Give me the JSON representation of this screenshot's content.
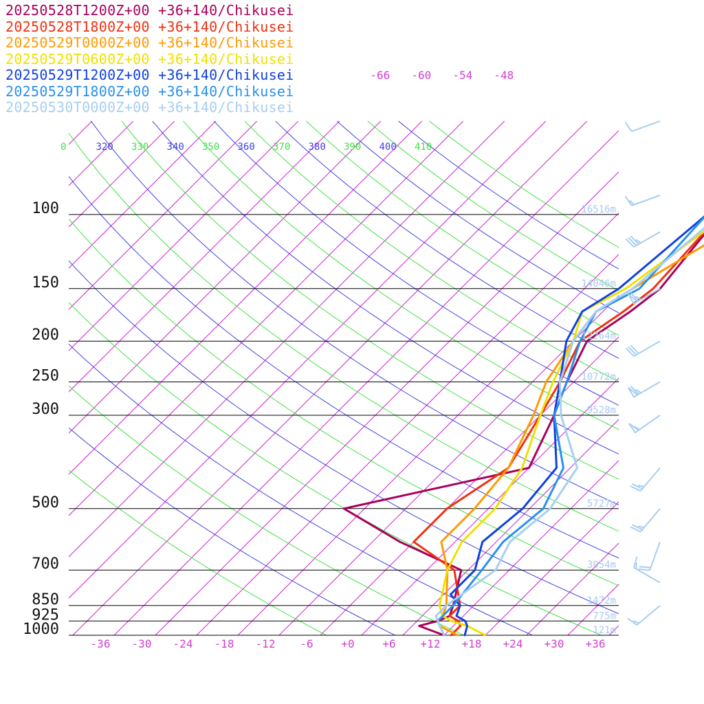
{
  "legend": [
    {
      "label": "20250528T1200Z+00 +36+140/Chikusei",
      "color": "#a8005c"
    },
    {
      "label": "20250528T1800Z+00 +36+140/Chikusei",
      "color": "#f03010"
    },
    {
      "label": "20250529T0000Z+00 +36+140/Chikusei",
      "color": "#ff9a00"
    },
    {
      "label": "20250529T0600Z+00 +36+140/Chikusei",
      "color": "#f0e000"
    },
    {
      "label": "20250529T1200Z+00 +36+140/Chikusei",
      "color": "#1040e0"
    },
    {
      "label": "20250529T1800Z+00 +36+140/Chikusei",
      "color": "#2890f0"
    },
    {
      "label": "20250530T0000Z+00 +36+140/Chikusei",
      "color": "#a8cef0"
    }
  ],
  "chart_data": {
    "type": "skew-t log-p",
    "pressure_levels": [
      {
        "p": 100,
        "label": "100",
        "height": "16516m"
      },
      {
        "p": 150,
        "label": "150",
        "height": "14046m"
      },
      {
        "p": 200,
        "label": "200",
        "height": "12264m"
      },
      {
        "p": 250,
        "label": "250",
        "height": "10772m"
      },
      {
        "p": 300,
        "label": "300",
        "height": "9528m"
      },
      {
        "p": 500,
        "label": "500",
        "height": "5727m"
      },
      {
        "p": 700,
        "label": "700",
        "height": "3054m"
      },
      {
        "p": 850,
        "label": "850",
        "height": "1472m"
      },
      {
        "p": 925,
        "label": "925",
        "height": "775m"
      },
      {
        "p": 1000,
        "label": "1000",
        "height": "121m"
      }
    ],
    "temperature_ticks": [
      "-36",
      "-30",
      "-24",
      "-18",
      "-12",
      "-6",
      "+0",
      "+6",
      "+12",
      "+18",
      "+24",
      "+30",
      "+36"
    ],
    "upper_temperature_ticks": [
      "-66",
      "-60",
      "-54",
      "-48"
    ],
    "theta_ticks": [
      {
        "label": "0",
        "color": "#40e040"
      },
      {
        "label": "320",
        "color": "#4040e0"
      },
      {
        "label": "330",
        "color": "#40e040"
      },
      {
        "label": "340",
        "color": "#4040e0"
      },
      {
        "label": "350",
        "color": "#40e040"
      },
      {
        "label": "360",
        "color": "#4040e0"
      },
      {
        "label": "370",
        "color": "#40e040"
      },
      {
        "label": "380",
        "color": "#4040e0"
      },
      {
        "label": "390",
        "color": "#40e040"
      },
      {
        "label": "400",
        "color": "#4040e0"
      },
      {
        "label": "410",
        "color": "#40e040"
      }
    ],
    "series": [
      {
        "name": "20250528T1200Z+00 +36+140/Chikusei",
        "color": "#a8005c",
        "points": [
          [
            1000,
            14
          ],
          [
            970,
            11
          ],
          [
            950,
            9
          ],
          [
            925,
            11
          ],
          [
            900,
            12
          ],
          [
            850,
            11
          ],
          [
            700,
            7
          ],
          [
            600,
            -6
          ],
          [
            500,
            -19
          ],
          [
            400,
            2
          ],
          [
            300,
            -2
          ],
          [
            250,
            -5
          ],
          [
            200,
            -8
          ],
          [
            170,
            -6
          ],
          [
            150,
            -5
          ],
          [
            100,
            -7
          ],
          [
            70,
            -8
          ]
        ]
      },
      {
        "name": "20250528T1800Z+00 +36+140/Chikusei",
        "color": "#f03010",
        "points": [
          [
            1000,
            15
          ],
          [
            950,
            15
          ],
          [
            925,
            14
          ],
          [
            900,
            12
          ],
          [
            850,
            12
          ],
          [
            700,
            6
          ],
          [
            600,
            -4
          ],
          [
            500,
            -4
          ],
          [
            400,
            -1
          ],
          [
            300,
            -4
          ],
          [
            250,
            -6
          ],
          [
            200,
            -9
          ],
          [
            170,
            -7
          ],
          [
            150,
            -6
          ],
          [
            100,
            -7
          ],
          [
            70,
            -8
          ]
        ]
      },
      {
        "name": "20250529T0000Z+00 +36+140/Chikusei",
        "color": "#ff9a00",
        "points": [
          [
            1000,
            16
          ],
          [
            950,
            12
          ],
          [
            925,
            11
          ],
          [
            900,
            11
          ],
          [
            850,
            10
          ],
          [
            700,
            5
          ],
          [
            600,
            0
          ],
          [
            500,
            0
          ],
          [
            400,
            -1
          ],
          [
            300,
            -5
          ],
          [
            250,
            -8
          ],
          [
            200,
            -10
          ],
          [
            170,
            -11
          ],
          [
            150,
            -9
          ],
          [
            100,
            -2
          ],
          [
            70,
            -6
          ]
        ]
      },
      {
        "name": "20250529T0600Z+00 +36+140/Chikusei",
        "color": "#f0e000",
        "points": [
          [
            1000,
            20
          ],
          [
            950,
            16
          ],
          [
            925,
            13
          ],
          [
            900,
            11
          ],
          [
            850,
            9
          ],
          [
            700,
            5
          ],
          [
            600,
            3
          ],
          [
            500,
            3
          ],
          [
            400,
            1
          ],
          [
            300,
            -4
          ],
          [
            250,
            -7
          ],
          [
            200,
            -10
          ],
          [
            170,
            -13
          ],
          [
            150,
            -10
          ],
          [
            100,
            -6
          ],
          [
            70,
            -5
          ]
        ]
      },
      {
        "name": "20250529T1200Z+00 +36+140/Chikusei",
        "color": "#1040e0",
        "points": [
          [
            1000,
            17
          ],
          [
            950,
            16
          ],
          [
            925,
            15
          ],
          [
            900,
            13
          ],
          [
            850,
            12
          ],
          [
            800,
            9
          ],
          [
            700,
            9
          ],
          [
            600,
            6
          ],
          [
            500,
            7
          ],
          [
            400,
            6
          ],
          [
            300,
            -2
          ],
          [
            250,
            -6
          ],
          [
            200,
            -11
          ],
          [
            170,
            -13
          ],
          [
            150,
            -11
          ],
          [
            100,
            -9
          ],
          [
            70,
            -7
          ]
        ]
      },
      {
        "name": "20250529T1800Z+00 +36+140/Chikusei",
        "color": "#2890f0",
        "points": [
          [
            1000,
            14
          ],
          [
            950,
            12
          ],
          [
            925,
            11
          ],
          [
            900,
            11
          ],
          [
            850,
            11
          ],
          [
            700,
            10
          ],
          [
            600,
            9
          ],
          [
            500,
            10
          ],
          [
            400,
            7
          ],
          [
            300,
            -2
          ],
          [
            250,
            -5
          ],
          [
            200,
            -9
          ],
          [
            170,
            -11
          ],
          [
            150,
            -8
          ],
          [
            100,
            -9
          ],
          [
            70,
            -8
          ]
        ]
      },
      {
        "name": "20250530T0000Z+00 +36+140/Chikusei",
        "color": "#a8cef0",
        "points": [
          [
            1000,
            14
          ],
          [
            950,
            12
          ],
          [
            925,
            11
          ],
          [
            900,
            10
          ],
          [
            850,
            10
          ],
          [
            700,
            12
          ],
          [
            600,
            10
          ],
          [
            500,
            11
          ],
          [
            400,
            9
          ],
          [
            300,
            -1
          ],
          [
            250,
            -6
          ],
          [
            200,
            -10
          ],
          [
            170,
            -11
          ],
          [
            150,
            -9
          ],
          [
            100,
            -7
          ],
          [
            70,
            -4
          ]
        ]
      }
    ],
    "wind_barbs": [
      {
        "p": 60,
        "speed_kt": 10,
        "dir": 250
      },
      {
        "p": 90,
        "speed_kt": 15,
        "dir": 250
      },
      {
        "p": 110,
        "speed_kt": 35,
        "dir": 240
      },
      {
        "p": 150,
        "speed_kt": 65,
        "dir": 240
      },
      {
        "p": 200,
        "speed_kt": 30,
        "dir": 240
      },
      {
        "p": 250,
        "speed_kt": 65,
        "dir": 240
      },
      {
        "p": 300,
        "speed_kt": 55,
        "dir": 235
      },
      {
        "p": 400,
        "speed_kt": 25,
        "dir": 220
      },
      {
        "p": 500,
        "speed_kt": 25,
        "dir": 220
      },
      {
        "p": 600,
        "speed_kt": 20,
        "dir": 200
      },
      {
        "p": 750,
        "speed_kt": 15,
        "dir": 300
      },
      {
        "p": 850,
        "speed_kt": 15,
        "dir": 230
      }
    ],
    "grid": true
  }
}
